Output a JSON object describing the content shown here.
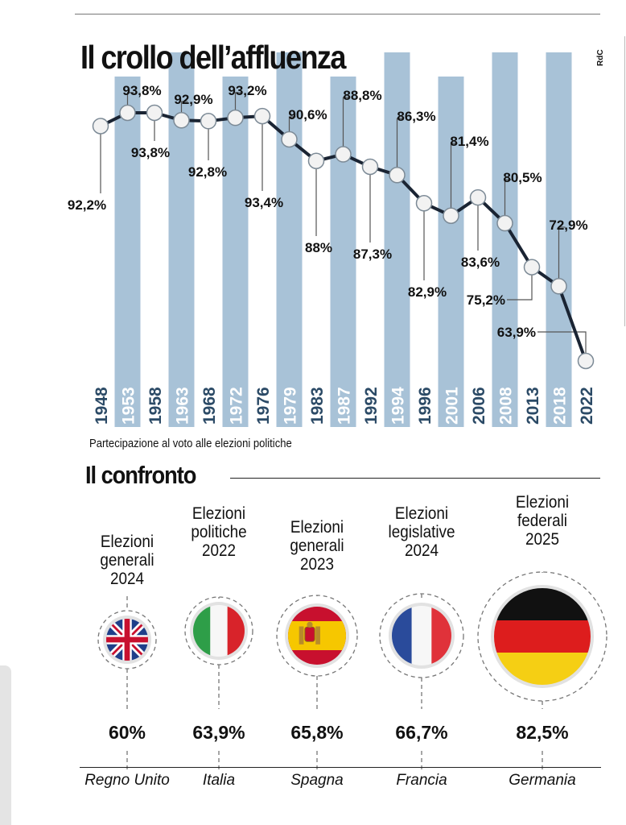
{
  "title": "Il crollo dell’affluenza",
  "credit": "RdC",
  "chart_caption": "Partecipazione al voto alle elezioni politiche",
  "chart_data": {
    "type": "line",
    "x": [
      "1948",
      "1953",
      "1958",
      "1963",
      "1968",
      "1972",
      "1976",
      "1979",
      "1983",
      "1987",
      "1992",
      "1994",
      "1996",
      "2001",
      "2006",
      "2008",
      "2013",
      "2018",
      "2022"
    ],
    "values": [
      92.2,
      93.8,
      93.8,
      92.9,
      92.8,
      93.2,
      93.4,
      90.6,
      88,
      88.8,
      87.3,
      86.3,
      82.9,
      81.4,
      83.6,
      80.5,
      75.2,
      72.9,
      63.9
    ],
    "labels": [
      "92,2%",
      "93,8%",
      "93,8%",
      "92,9%",
      "92,8%",
      "93,2%",
      "93,4%",
      "90,6%",
      "88%",
      "88,8%",
      "87,3%",
      "86,3%",
      "82,9%",
      "81,4%",
      "83,6%",
      "80,5%",
      "75,2%",
      "72,9%",
      "63,9%"
    ],
    "title": "Il crollo dell’affluenza",
    "xlabel": "",
    "ylabel": "",
    "ylim": [
      60,
      96
    ],
    "grid": false,
    "colors": {
      "band": "#a8c2d7",
      "line": "#1a2433",
      "marker_fill": "#f2f2f2",
      "marker_stroke": "#7c8a96",
      "year_on_band": "#ffffff",
      "year_off_band": "#2b4a66"
    }
  },
  "comparison": {
    "title": "Il confronto",
    "items": [
      {
        "label": "Elezioni\ngenerali\n2024",
        "value": "60%",
        "country": "Regno Unito",
        "flag": "uk-flag-icon"
      },
      {
        "label": "Elezioni\npolitiche\n2022",
        "value": "63,9%",
        "country": "Italia",
        "flag": "italy-flag-icon"
      },
      {
        "label": "Elezioni\ngenerali\n2023",
        "value": "65,8%",
        "country": "Spagna",
        "flag": "spain-flag-icon"
      },
      {
        "label": "Elezioni\nlegislative\n2024",
        "value": "66,7%",
        "country": "Francia",
        "flag": "france-flag-icon"
      },
      {
        "label": "Elezioni\nfederali\n2025",
        "value": "82,5%",
        "country": "Germania",
        "flag": "germany-flag-icon"
      }
    ]
  }
}
